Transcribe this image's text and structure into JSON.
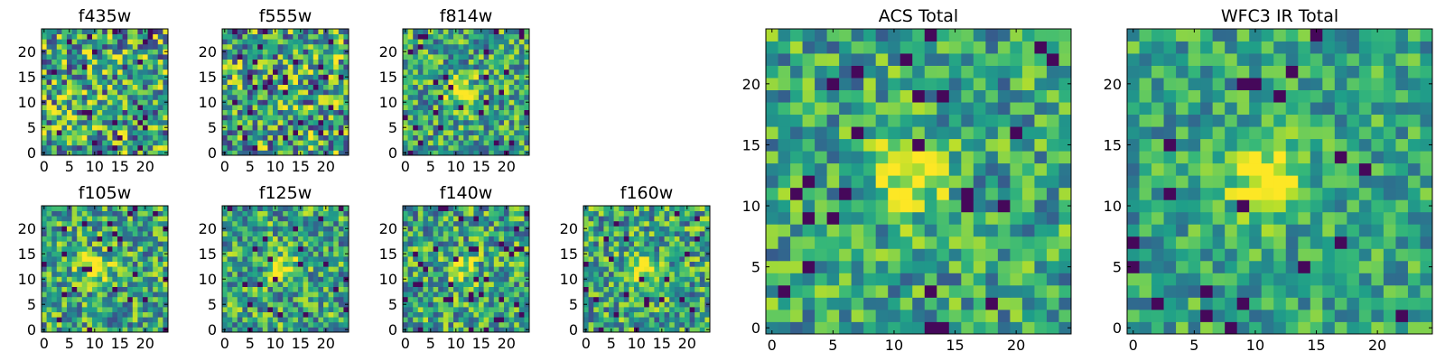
{
  "chart_data": [
    {
      "type": "heatmap",
      "title": "f435w",
      "xticks": [
        "0",
        "5",
        "10",
        "15",
        "20"
      ],
      "yticks": [
        "0",
        "5",
        "10",
        "15",
        "20"
      ],
      "xlim": [
        0,
        24
      ],
      "ylim": [
        0,
        24
      ],
      "grid": false,
      "colormap": "viridis",
      "source_peak": [
        11,
        12
      ],
      "peak_strength": 0.0,
      "noise_level": 0.45,
      "seed": 11
    },
    {
      "type": "heatmap",
      "title": "f555w",
      "xticks": [
        "0",
        "5",
        "10",
        "15",
        "20"
      ],
      "yticks": [
        "0",
        "5",
        "10",
        "15",
        "20"
      ],
      "xlim": [
        0,
        24
      ],
      "ylim": [
        0,
        24
      ],
      "grid": false,
      "colormap": "viridis",
      "source_peak": [
        11,
        12
      ],
      "peak_strength": 0.0,
      "noise_level": 0.45,
      "seed": 23
    },
    {
      "type": "heatmap",
      "title": "f814w",
      "xticks": [
        "0",
        "5",
        "10",
        "15",
        "20"
      ],
      "yticks": [
        "0",
        "5",
        "10",
        "15",
        "20"
      ],
      "xlim": [
        0,
        24
      ],
      "ylim": [
        0,
        24
      ],
      "grid": false,
      "colormap": "viridis",
      "source_peak": [
        11,
        12
      ],
      "peak_strength": 0.55,
      "noise_level": 0.35,
      "seed": 37
    },
    {
      "type": "heatmap",
      "title": "f105w",
      "xticks": [
        "0",
        "5",
        "10",
        "15",
        "20"
      ],
      "yticks": [
        "0",
        "5",
        "10",
        "15",
        "20"
      ],
      "xlim": [
        0,
        24
      ],
      "ylim": [
        0,
        24
      ],
      "grid": false,
      "colormap": "viridis",
      "source_peak": [
        10,
        12
      ],
      "peak_strength": 0.5,
      "noise_level": 0.35,
      "seed": 41
    },
    {
      "type": "heatmap",
      "title": "f125w",
      "xticks": [
        "0",
        "5",
        "10",
        "15",
        "20"
      ],
      "yticks": [
        "0",
        "5",
        "10",
        "15",
        "20"
      ],
      "xlim": [
        0,
        24
      ],
      "ylim": [
        0,
        24
      ],
      "grid": false,
      "colormap": "viridis",
      "source_peak": [
        12,
        12
      ],
      "peak_strength": 0.4,
      "noise_level": 0.35,
      "seed": 53
    },
    {
      "type": "heatmap",
      "title": "f140w",
      "xticks": [
        "0",
        "5",
        "10",
        "15",
        "20"
      ],
      "yticks": [
        "0",
        "5",
        "10",
        "15",
        "20"
      ],
      "xlim": [
        0,
        24
      ],
      "ylim": [
        0,
        24
      ],
      "grid": false,
      "colormap": "viridis",
      "source_peak": [
        11,
        12
      ],
      "peak_strength": 0.4,
      "noise_level": 0.35,
      "seed": 67
    },
    {
      "type": "heatmap",
      "title": "f160w",
      "xticks": [
        "0",
        "5",
        "10",
        "15",
        "20"
      ],
      "yticks": [
        "0",
        "5",
        "10",
        "15",
        "20"
      ],
      "xlim": [
        0,
        24
      ],
      "ylim": [
        0,
        24
      ],
      "grid": false,
      "colormap": "viridis",
      "source_peak": [
        11,
        12
      ],
      "peak_strength": 0.5,
      "noise_level": 0.35,
      "seed": 79
    },
    {
      "type": "heatmap",
      "title": "ACS Total",
      "xticks": [
        "0",
        "5",
        "10",
        "15",
        "20"
      ],
      "yticks": [
        "0",
        "5",
        "10",
        "15",
        "20"
      ],
      "xlim": [
        0,
        24
      ],
      "ylim": [
        0,
        24
      ],
      "grid": false,
      "colormap": "viridis",
      "source_peak": [
        11,
        12
      ],
      "peak_strength": 0.5,
      "noise_level": 0.3,
      "seed": 97
    },
    {
      "type": "heatmap",
      "title": "WFC3 IR Total",
      "xticks": [
        "0",
        "5",
        "10",
        "15",
        "20"
      ],
      "yticks": [
        "0",
        "5",
        "10",
        "15",
        "20"
      ],
      "xlim": [
        0,
        24
      ],
      "ylim": [
        0,
        24
      ],
      "grid": false,
      "colormap": "viridis",
      "source_peak": [
        11,
        12
      ],
      "peak_strength": 0.6,
      "noise_level": 0.25,
      "seed": 113
    }
  ]
}
